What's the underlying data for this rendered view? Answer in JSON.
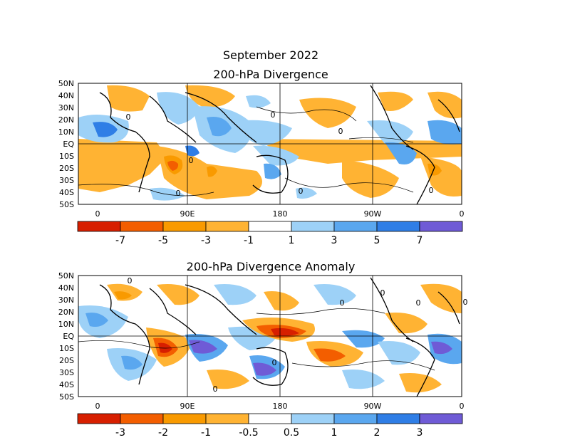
{
  "header": {
    "title": "September 2022",
    "panel1_title": "200-hPa Divergence",
    "panel2_title": "200-hPa Divergence Anomaly"
  },
  "axes": {
    "lat_labels": [
      "50N",
      "40N",
      "30N",
      "20N",
      "10N",
      "EQ",
      "10S",
      "20S",
      "30S",
      "40S",
      "50S"
    ],
    "lon_labels": [
      "0",
      "90E",
      "180",
      "90W",
      "0"
    ]
  },
  "colorbar1": {
    "colors": [
      "#d71f00",
      "#f35e00",
      "#f99a00",
      "#ffb333",
      "#ffffff",
      "#9dd1f7",
      "#5aa7ef",
      "#2f7ee6",
      "#6f5bd6"
    ],
    "labels": [
      "-7",
      "-5",
      "-3",
      "-1",
      "1",
      "3",
      "5",
      "7"
    ]
  },
  "colorbar2": {
    "colors": [
      "#d71f00",
      "#f35e00",
      "#f99a00",
      "#ffb333",
      "#ffffff",
      "#9dd1f7",
      "#5aa7ef",
      "#2f7ee6",
      "#6f5bd6"
    ],
    "labels": [
      "-3",
      "-2",
      "-1",
      "-0.5",
      "0.5",
      "1",
      "2",
      "3"
    ]
  },
  "contour_label": "0"
}
